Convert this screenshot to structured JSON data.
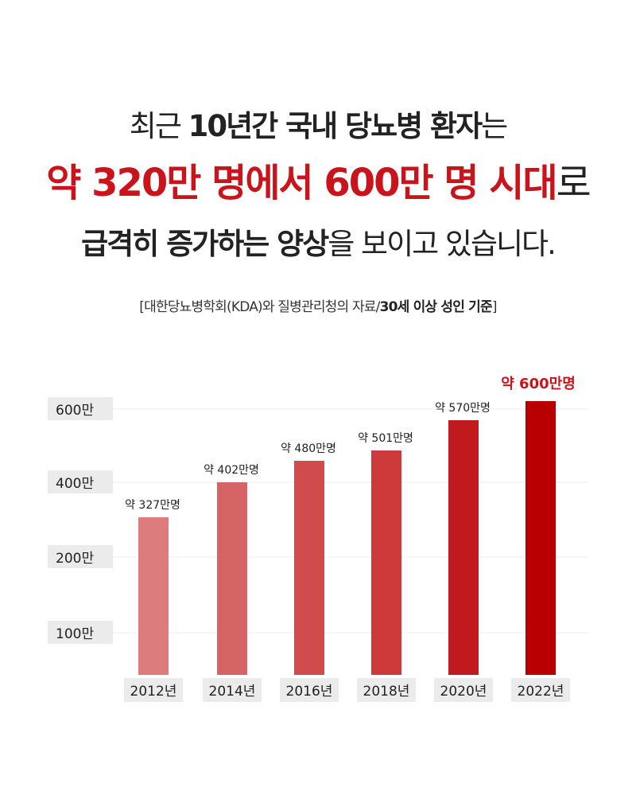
{
  "headline": {
    "line1_a": "최근 ",
    "line1_b": "10년간 국내 당뇨병 환자",
    "line1_c": "는",
    "line2_a": "약 320만 명에서 600만 명 시대",
    "line2_b": "로",
    "line3_a": "급격히 증가하는 양상",
    "line3_b": "을 보이고 있습니다."
  },
  "source": {
    "open": "[",
    "text": "대한당뇨병학회(KDA)와 질병관리청의 자료/",
    "bold": "30세 이상 성인 기준",
    "close": "]"
  },
  "colors": {
    "accent": "#c8141a",
    "bars": [
      "#dc7c7c",
      "#d76464",
      "#d04b4b",
      "#cc3a3a",
      "#c11a1e",
      "#b80000"
    ]
  },
  "chart_data": {
    "type": "bar",
    "title": "",
    "xlabel": "",
    "ylabel": "",
    "categories": [
      "2012년",
      "2014년",
      "2016년",
      "2018년",
      "2020년",
      "2022년"
    ],
    "values": [
      327,
      402,
      480,
      501,
      570,
      600
    ],
    "data_labels": [
      "약 327만명",
      "약 402만명",
      "약 480만명",
      "약 501만명",
      "약 570만명",
      "약 600만명"
    ],
    "highlight_index": 5,
    "yticks": [
      {
        "value": 100,
        "label": "100만"
      },
      {
        "value": 200,
        "label": "200만"
      },
      {
        "value": 400,
        "label": "400만"
      },
      {
        "value": 600,
        "label": "600만"
      }
    ],
    "grid": true
  }
}
